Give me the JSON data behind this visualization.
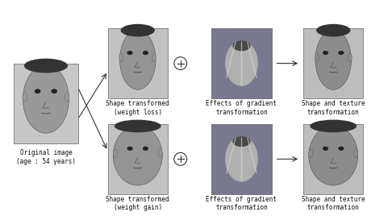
{
  "background_color": "#ffffff",
  "fig_width": 4.86,
  "fig_height": 2.73,
  "dpi": 100,
  "labels": {
    "original": "Original image\n(age : 54 years)",
    "shape_gain": "Shape transformed\n(weight gain)",
    "effects_gain": "Effects of gradient\ntransformation",
    "shape_texture_gain": "Shape and texture\ntransformation",
    "shape_loss": "Shape transformed\n(weight loss)",
    "effects_loss": "Effects of gradient\ntransformation",
    "shape_texture_loss": "Shape and texture\ntransformation"
  },
  "font_size": 5.5,
  "font_family": "monospace",
  "face_color": "#a0a0a0",
  "gradient_color_top": "#808090",
  "gradient_color_mid": "#c8c8c8"
}
